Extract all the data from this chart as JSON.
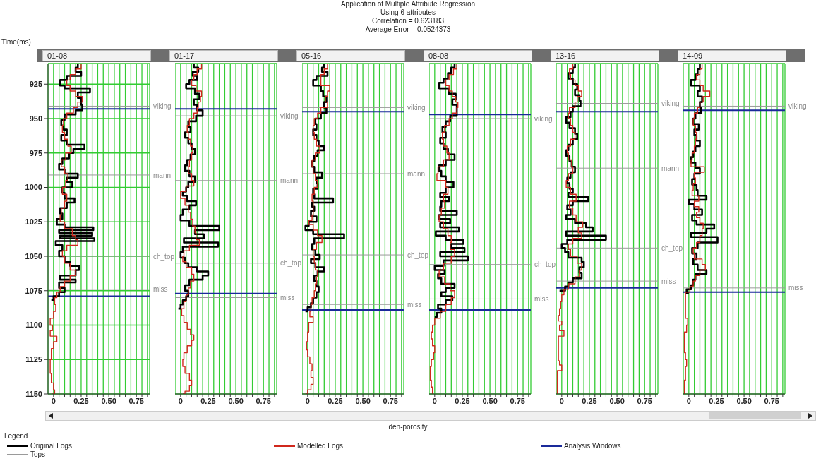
{
  "chart_data": [
    {
      "type": "step",
      "title": "01-08",
      "ylabel": "Time(ms)",
      "grid": true,
      "xlim": [
        -0.05,
        0.87
      ],
      "ylim": [
        1150,
        910
      ],
      "xticks": [
        0,
        {
          "value": 0.05,
          "label": null
        },
        {
          "value": 0.1,
          "label": null
        },
        {
          "value": 0.15,
          "label": null
        },
        {
          "value": 0.2,
          "label": null
        },
        0.25,
        {
          "value": 0.3,
          "label": null
        },
        {
          "value": 0.35,
          "label": null
        },
        {
          "value": 0.4,
          "label": null
        },
        {
          "value": 0.45,
          "label": null
        },
        {
          "value": 0.5,
          "label": "0.50"
        },
        {
          "value": 0.55,
          "label": null
        },
        {
          "value": 0.6,
          "label": null
        },
        {
          "value": 0.65,
          "label": null
        },
        {
          "value": 0.7,
          "label": null
        },
        0.75,
        {
          "value": 0.8,
          "label": null
        },
        {
          "value": 0.85,
          "label": null
        }
      ],
      "yticks": [
        925,
        950,
        975,
        1000,
        1025,
        1050,
        1075,
        1100,
        1125,
        1150
      ],
      "series": [
        {
          "color": "#000000",
          "x": [
            0.22,
            0.2,
            0.25,
            0.12,
            0.06,
            0.1,
            0.33,
            0.22,
            0.25,
            0.26,
            0.2,
            0.1,
            0.07,
            0.09,
            0.12,
            0.07,
            0.12,
            0.28,
            0.18,
            0.14,
            0.08,
            0.05,
            0.1,
            0.22,
            0.12,
            0.17,
            0.08,
            0.1,
            0.19,
            0.12,
            0.06,
            0.08,
            0.03,
            0.1,
            0.36,
            0.05,
            0.35,
            0.06,
            0.37,
            0.02,
            0.08,
            0.05,
            0.1,
            0.15,
            0.23,
            0.2,
            0.06,
            0.2,
            0.05,
            0.1,
            0.05,
            0.0,
            -0.02
          ],
          "values": [
            910,
            913,
            916,
            919,
            922,
            926,
            928,
            931,
            935,
            940,
            944,
            947,
            951,
            955,
            958,
            962,
            966,
            969,
            972,
            975,
            979,
            983,
            987,
            990,
            993,
            996,
            1000,
            1004,
            1008,
            1011,
            1015,
            1019,
            1023,
            1027,
            1029,
            1031,
            1033,
            1035,
            1037,
            1039,
            1042,
            1046,
            1050,
            1054,
            1057,
            1060,
            1064,
            1067,
            1069,
            1073,
            1076,
            1079,
            1082
          ]
        },
        {
          "color": "#d0281c",
          "x": [
            0.25,
            0.2,
            0.15,
            0.12,
            0.15,
            0.2,
            0.26,
            0.22,
            0.18,
            0.12,
            0.09,
            0.08,
            0.1,
            0.13,
            0.16,
            0.11,
            0.07,
            0.1,
            0.13,
            0.11,
            0.08,
            0.12,
            0.1,
            0.07,
            0.06,
            0.1,
            0.17,
            0.2,
            0.22,
            0.12,
            0.08,
            0.1,
            0.15,
            0.2,
            0.15,
            0.1,
            0.06,
            0.03,
            0.01,
            0.02,
            0.0,
            -0.03,
            -0.01,
            -0.03,
            0.03,
            0.0,
            -0.02,
            -0.03,
            -0.02,
            0.0,
            0.01,
            -0.01
          ],
          "values": [
            910,
            914,
            918,
            922,
            926,
            930,
            934,
            938,
            942,
            946,
            950,
            955,
            960,
            965,
            970,
            975,
            980,
            985,
            990,
            995,
            1000,
            1005,
            1010,
            1015,
            1020,
            1025,
            1030,
            1035,
            1038,
            1042,
            1046,
            1050,
            1055,
            1060,
            1064,
            1068,
            1072,
            1076,
            1080,
            1085,
            1090,
            1095,
            1100,
            1104,
            1108,
            1112,
            1117,
            1125,
            1135,
            1142,
            1147,
            1150
          ]
        }
      ],
      "ref_lines": [
        {
          "axis": "y",
          "value": 941,
          "label": "viking",
          "color": "#9a9a9a"
        },
        {
          "axis": "y",
          "value": 943,
          "color": "#1a2a9a"
        },
        {
          "axis": "y",
          "value": 991,
          "label": "mann",
          "color": "#9a9a9a"
        },
        {
          "axis": "y",
          "value": 1050,
          "label": "ch_top",
          "color": "#9a9a9a"
        },
        {
          "axis": "y",
          "value": 1074,
          "label": "miss",
          "color": "#9a9a9a"
        },
        {
          "axis": "y",
          "value": 1079,
          "color": "#1a2a9a"
        }
      ]
    },
    {
      "type": "step",
      "title": "01-17",
      "tick_labels": "x",
      "grid": true,
      "xlim": [
        -0.05,
        0.87
      ],
      "ylim": [
        1150,
        910
      ],
      "xticks": [
        0,
        {
          "value": 0.05,
          "label": null
        },
        {
          "value": 0.1,
          "label": null
        },
        {
          "value": 0.15,
          "label": null
        },
        {
          "value": 0.2,
          "label": null
        },
        0.25,
        {
          "value": 0.3,
          "label": null
        },
        {
          "value": 0.35,
          "label": null
        },
        {
          "value": 0.4,
          "label": null
        },
        {
          "value": 0.45,
          "label": null
        },
        {
          "value": 0.5,
          "label": "0.50"
        },
        {
          "value": 0.55,
          "label": null
        },
        {
          "value": 0.6,
          "label": null
        },
        {
          "value": 0.65,
          "label": null
        },
        {
          "value": 0.7,
          "label": null
        },
        0.75,
        {
          "value": 0.8,
          "label": null
        },
        {
          "value": 0.85,
          "label": null
        }
      ],
      "yticks": [
        925,
        950,
        975,
        1000,
        1025,
        1050,
        1075,
        1100,
        1125,
        1150
      ],
      "series": [
        {
          "color": "#000000",
          "x": [
            0.12,
            0.16,
            0.11,
            0.15,
            0.08,
            0.05,
            0.13,
            0.17,
            0.12,
            0.15,
            0.2,
            0.14,
            0.07,
            0.09,
            0.04,
            0.07,
            0.1,
            0.13,
            0.09,
            0.06,
            0.04,
            0.08,
            0.13,
            0.07,
            0.05,
            0.02,
            0.06,
            0.14,
            0.08,
            0.02,
            0.0,
            0.08,
            0.35,
            0.13,
            0.21,
            0.03,
            0.34,
            0.02,
            0.0,
            0.04,
            0.07,
            0.15,
            0.25,
            0.2,
            0.08,
            0.04,
            0.07,
            0.05,
            0.02,
            0.0,
            -0.02
          ],
          "values": [
            910,
            913,
            916,
            919,
            922,
            925,
            928,
            932,
            936,
            940,
            944,
            948,
            952,
            956,
            960,
            964,
            968,
            972,
            976,
            980,
            984,
            988,
            992,
            996,
            1000,
            1003,
            1006,
            1010,
            1013,
            1016,
            1020,
            1024,
            1028,
            1031,
            1034,
            1037,
            1040,
            1043,
            1047,
            1051,
            1055,
            1058,
            1061,
            1064,
            1067,
            1071,
            1075,
            1079,
            1082,
            1085,
            1088
          ]
        },
        {
          "color": "#d0281c",
          "x": [
            0.19,
            0.15,
            0.12,
            0.1,
            0.14,
            0.19,
            0.18,
            0.16,
            0.15,
            0.12,
            0.08,
            0.06,
            0.07,
            0.09,
            0.11,
            0.1,
            0.08,
            0.07,
            0.1,
            0.12,
            0.05,
            0.0,
            0.04,
            0.07,
            0.09,
            0.11,
            0.13,
            0.14,
            0.17,
            0.08,
            0.03,
            0.02,
            0.05,
            0.1,
            0.12,
            0.09,
            0.07,
            0.05,
            0.03,
            0.01,
            0.03,
            0.06,
            0.09,
            0.12,
            0.1,
            0.06,
            0.03,
            0.02,
            0.04,
            0.08,
            0.1,
            0.08,
            0.04,
            0.02
          ],
          "values": [
            910,
            914,
            918,
            922,
            926,
            930,
            934,
            938,
            942,
            946,
            950,
            955,
            960,
            965,
            970,
            975,
            980,
            985,
            990,
            995,
            999,
            1003,
            1008,
            1013,
            1018,
            1023,
            1028,
            1033,
            1038,
            1042,
            1046,
            1050,
            1054,
            1058,
            1063,
            1068,
            1073,
            1078,
            1083,
            1088,
            1093,
            1098,
            1103,
            1107,
            1111,
            1115,
            1120,
            1125,
            1130,
            1135,
            1140,
            1144,
            1148,
            1150
          ]
        }
      ],
      "ref_lines": [
        {
          "axis": "y",
          "value": 943,
          "color": "#1a2a9a"
        },
        {
          "axis": "y",
          "value": 948,
          "label": "viking",
          "color": "#9a9a9a"
        },
        {
          "axis": "y",
          "value": 995,
          "label": "mann",
          "color": "#9a9a9a"
        },
        {
          "axis": "y",
          "value": 1055,
          "label": "ch_top",
          "color": "#9a9a9a"
        },
        {
          "axis": "y",
          "value": 1077,
          "color": "#1a2a9a"
        },
        {
          "axis": "y",
          "value": 1080,
          "label": "miss",
          "color": "#9a9a9a"
        }
      ]
    },
    {
      "type": "step",
      "title": "05-16",
      "tick_labels": "x",
      "grid": true,
      "xlim": [
        -0.05,
        0.87
      ],
      "ylim": [
        1150,
        910
      ],
      "xticks": [
        0,
        {
          "value": 0.05,
          "label": null
        },
        {
          "value": 0.1,
          "label": null
        },
        {
          "value": 0.15,
          "label": null
        },
        {
          "value": 0.2,
          "label": null
        },
        0.25,
        {
          "value": 0.3,
          "label": null
        },
        {
          "value": 0.35,
          "label": null
        },
        {
          "value": 0.4,
          "label": null
        },
        {
          "value": 0.45,
          "label": null
        },
        {
          "value": 0.5,
          "label": "0.50"
        },
        {
          "value": 0.55,
          "label": null
        },
        {
          "value": 0.6,
          "label": null
        },
        {
          "value": 0.65,
          "label": null
        },
        {
          "value": 0.7,
          "label": null
        },
        0.75,
        {
          "value": 0.8,
          "label": null
        },
        {
          "value": 0.85,
          "label": null
        }
      ],
      "yticks": [
        925,
        950,
        975,
        1000,
        1025,
        1050,
        1075,
        1100,
        1125,
        1150
      ],
      "series": [
        {
          "color": "#000000",
          "x": [
            0.15,
            0.13,
            0.18,
            0.08,
            0.05,
            0.12,
            0.14,
            0.17,
            0.15,
            0.17,
            0.12,
            0.07,
            0.08,
            0.05,
            0.08,
            0.1,
            0.15,
            0.09,
            0.06,
            0.04,
            0.06,
            0.13,
            0.08,
            0.09,
            0.05,
            0.06,
            0.23,
            0.04,
            0.06,
            0.03,
            0.08,
            0.01,
            -0.02,
            0.05,
            0.33,
            0.06,
            0.04,
            0.07,
            0.11,
            0.03,
            0.07,
            0.15,
            0.09,
            0.06,
            0.08,
            0.1,
            0.08,
            0.05,
            0.03,
            0.0,
            -0.02
          ],
          "values": [
            910,
            913,
            916,
            919,
            922,
            926,
            930,
            934,
            938,
            942,
            946,
            950,
            954,
            958,
            962,
            966,
            970,
            973,
            977,
            981,
            985,
            989,
            993,
            997,
            1001,
            1005,
            1008,
            1011,
            1014,
            1017,
            1021,
            1025,
            1028,
            1031,
            1034,
            1037,
            1041,
            1045,
            1049,
            1052,
            1055,
            1058,
            1061,
            1064,
            1068,
            1072,
            1076,
            1080,
            1084,
            1087,
            1090
          ]
        },
        {
          "color": "#d0281c",
          "x": [
            0.18,
            0.15,
            0.12,
            0.12,
            0.2,
            0.18,
            0.16,
            0.18,
            0.12,
            0.09,
            0.06,
            0.05,
            0.06,
            0.08,
            0.11,
            0.07,
            0.04,
            0.05,
            0.07,
            0.09,
            0.06,
            0.04,
            0.05,
            0.05,
            0.04,
            0.01,
            0.05,
            0.09,
            0.13,
            0.08,
            0.05,
            0.06,
            0.07,
            0.09,
            0.08,
            0.07,
            0.06,
            0.04,
            0.03,
            0.02,
            0.05,
            0.01,
            0.0,
            -0.01,
            0.0,
            0.02,
            0.04,
            0.03,
            0.05,
            0.03,
            0.0,
            -0.02
          ],
          "values": [
            910,
            914,
            918,
            922,
            926,
            930,
            934,
            938,
            942,
            946,
            950,
            955,
            960,
            965,
            970,
            975,
            980,
            985,
            990,
            995,
            1000,
            1005,
            1010,
            1015,
            1020,
            1024,
            1027,
            1031,
            1035,
            1040,
            1045,
            1050,
            1055,
            1060,
            1065,
            1070,
            1075,
            1080,
            1085,
            1090,
            1094,
            1098,
            1105,
            1112,
            1118,
            1123,
            1128,
            1133,
            1138,
            1143,
            1147,
            1150
          ]
        }
      ],
      "ref_lines": [
        {
          "axis": "y",
          "value": 942,
          "label": "viking",
          "color": "#9a9a9a"
        },
        {
          "axis": "y",
          "value": 945,
          "color": "#1a2a9a"
        },
        {
          "axis": "y",
          "value": 990,
          "label": "mann",
          "color": "#9a9a9a"
        },
        {
          "axis": "y",
          "value": 1049,
          "label": "ch_top",
          "color": "#9a9a9a"
        },
        {
          "axis": "y",
          "value": 1085,
          "label": "miss",
          "color": "#9a9a9a"
        },
        {
          "axis": "y",
          "value": 1089,
          "color": "#1a2a9a"
        }
      ]
    },
    {
      "type": "step",
      "title": "08-08",
      "tick_labels": "x",
      "grid": true,
      "xlim": [
        -0.05,
        0.87
      ],
      "ylim": [
        1150,
        910
      ],
      "xticks": [
        0,
        {
          "value": 0.05,
          "label": null
        },
        {
          "value": 0.1,
          "label": null
        },
        {
          "value": 0.15,
          "label": null
        },
        {
          "value": 0.2,
          "label": null
        },
        0.25,
        {
          "value": 0.3,
          "label": null
        },
        {
          "value": 0.35,
          "label": null
        },
        {
          "value": 0.4,
          "label": null
        },
        {
          "value": 0.45,
          "label": null
        },
        {
          "value": 0.5,
          "label": "0.50"
        },
        {
          "value": 0.55,
          "label": null
        },
        {
          "value": 0.6,
          "label": null
        },
        {
          "value": 0.65,
          "label": null
        },
        {
          "value": 0.7,
          "label": null
        },
        0.75,
        {
          "value": 0.8,
          "label": null
        },
        {
          "value": 0.85,
          "label": null
        }
      ],
      "yticks": [
        925,
        950,
        975,
        1000,
        1025,
        1050,
        1075,
        1100,
        1125,
        1150
      ],
      "series": [
        {
          "color": "#000000",
          "x": [
            0.18,
            0.15,
            0.12,
            0.08,
            0.04,
            0.13,
            0.19,
            0.16,
            0.2,
            0.2,
            0.14,
            0.1,
            0.07,
            0.1,
            0.05,
            0.08,
            0.12,
            0.18,
            0.1,
            0.04,
            0.06,
            0.1,
            0.17,
            0.1,
            0.05,
            0.13,
            0.06,
            0.05,
            0.2,
            0.04,
            0.14,
            0.05,
            0.22,
            0.01,
            0.1,
            0.26,
            0.15,
            0.27,
            0.05,
            0.3,
            0.08,
            0.0,
            0.09,
            0.03,
            0.06,
            0.18,
            0.1,
            0.06,
            0.16,
            0.1,
            0.03,
            0.06,
            0.02,
            0.0
          ],
          "values": [
            910,
            913,
            917,
            921,
            924,
            928,
            932,
            936,
            940,
            944,
            948,
            952,
            956,
            960,
            964,
            968,
            972,
            976,
            980,
            984,
            988,
            992,
            996,
            1000,
            1004,
            1007,
            1010,
            1014,
            1017,
            1020,
            1023,
            1026,
            1029,
            1032,
            1035,
            1038,
            1041,
            1044,
            1047,
            1050,
            1053,
            1057,
            1060,
            1063,
            1066,
            1070,
            1073,
            1076,
            1079,
            1082,
            1085,
            1088,
            1091,
            1094
          ]
        },
        {
          "color": "#d0281c",
          "x": [
            0.2,
            0.17,
            0.13,
            0.1,
            0.13,
            0.16,
            0.19,
            0.21,
            0.2,
            0.16,
            0.13,
            0.09,
            0.07,
            0.08,
            0.11,
            0.13,
            0.08,
            0.03,
            0.02,
            0.1,
            0.12,
            0.08,
            0.09,
            0.06,
            0.04,
            0.08,
            0.12,
            0.15,
            0.14,
            0.18,
            0.15,
            0.08,
            0.04,
            0.09,
            0.14,
            0.18,
            0.15,
            0.1,
            0.05,
            0.0,
            -0.02,
            -0.03,
            -0.02,
            0.0,
            -0.01,
            -0.03,
            -0.04,
            -0.04,
            -0.03,
            -0.02,
            -0.02
          ],
          "values": [
            910,
            914,
            918,
            922,
            926,
            930,
            934,
            938,
            942,
            946,
            950,
            955,
            960,
            965,
            970,
            975,
            980,
            985,
            990,
            995,
            1000,
            1005,
            1010,
            1015,
            1020,
            1025,
            1030,
            1035,
            1040,
            1045,
            1050,
            1055,
            1060,
            1065,
            1070,
            1075,
            1080,
            1085,
            1090,
            1095,
            1100,
            1105,
            1110,
            1115,
            1120,
            1125,
            1130,
            1135,
            1140,
            1145,
            1150
          ]
        }
      ],
      "ref_lines": [
        {
          "axis": "y",
          "value": 947,
          "color": "#1a2a9a"
        },
        {
          "axis": "y",
          "value": 950,
          "label": "viking",
          "color": "#9a9a9a"
        },
        {
          "axis": "y",
          "value": 1056,
          "label": "ch_top",
          "color": "#9a9a9a"
        },
        {
          "axis": "y",
          "value": 1081,
          "label": "miss",
          "color": "#9a9a9a"
        },
        {
          "axis": "y",
          "value": 1089,
          "color": "#1a2a9a"
        }
      ]
    },
    {
      "type": "step",
      "title": "13-16",
      "tick_labels": "x",
      "grid": true,
      "xlim": [
        -0.05,
        0.87
      ],
      "ylim": [
        1150,
        910
      ],
      "xticks": [
        0,
        {
          "value": 0.05,
          "label": null
        },
        {
          "value": 0.1,
          "label": null
        },
        {
          "value": 0.15,
          "label": null
        },
        {
          "value": 0.2,
          "label": null
        },
        0.25,
        {
          "value": 0.3,
          "label": null
        },
        {
          "value": 0.35,
          "label": null
        },
        {
          "value": 0.4,
          "label": null
        },
        {
          "value": 0.45,
          "label": null
        },
        {
          "value": 0.5,
          "label": "0.50"
        },
        {
          "value": 0.55,
          "label": null
        },
        {
          "value": 0.6,
          "label": null
        },
        {
          "value": 0.65,
          "label": null
        },
        {
          "value": 0.7,
          "label": null
        },
        0.75,
        {
          "value": 0.8,
          "label": null
        },
        {
          "value": 0.85,
          "label": null
        }
      ],
      "yticks": [
        925,
        950,
        975,
        1000,
        1025,
        1050,
        1075,
        1100,
        1125,
        1150
      ],
      "series": [
        {
          "color": "#000000",
          "x": [
            0.12,
            0.1,
            0.06,
            0.1,
            0.14,
            0.12,
            0.16,
            0.17,
            0.1,
            0.08,
            0.04,
            0.07,
            0.12,
            0.14,
            0.1,
            0.06,
            0.04,
            0.07,
            0.09,
            0.12,
            0.08,
            0.05,
            0.07,
            0.1,
            0.06,
            0.24,
            0.1,
            0.05,
            0.08,
            0.04,
            0.12,
            0.22,
            0.28,
            0.04,
            0.4,
            0.05,
            0.0,
            0.03,
            0.06,
            0.18,
            0.2,
            0.16,
            0.18,
            0.1,
            0.06,
            0.03,
            -0.02
          ],
          "values": [
            910,
            913,
            917,
            921,
            925,
            929,
            933,
            937,
            941,
            945,
            949,
            953,
            957,
            961,
            965,
            969,
            973,
            977,
            981,
            985,
            989,
            993,
            997,
            1001,
            1004,
            1007,
            1010,
            1013,
            1016,
            1020,
            1023,
            1026,
            1029,
            1032,
            1035,
            1038,
            1041,
            1044,
            1047,
            1051,
            1054,
            1058,
            1062,
            1066,
            1069,
            1072,
            1075
          ]
        },
        {
          "color": "#d0281c",
          "x": [
            0.1,
            0.07,
            0.08,
            0.12,
            0.15,
            0.18,
            0.14,
            0.12,
            0.07,
            0.06,
            0.08,
            0.1,
            0.12,
            0.08,
            0.05,
            0.06,
            0.09,
            0.1,
            0.06,
            0.04,
            0.08,
            0.13,
            0.07,
            0.1,
            0.13,
            0.19,
            0.15,
            0.18,
            0.1,
            0.06,
            0.08,
            0.14,
            0.18,
            0.16,
            0.12,
            0.06,
            0.02,
            0.0,
            -0.01,
            -0.02,
            -0.03,
            0.0,
            -0.02,
            0.02,
            -0.03,
            -0.03,
            -0.03,
            -0.02,
            0.0,
            -0.04,
            -0.04,
            -0.04
          ],
          "values": [
            910,
            914,
            918,
            922,
            926,
            930,
            934,
            938,
            942,
            946,
            950,
            955,
            960,
            965,
            970,
            975,
            980,
            985,
            990,
            995,
            1000,
            1005,
            1010,
            1015,
            1020,
            1025,
            1029,
            1033,
            1037,
            1041,
            1045,
            1050,
            1055,
            1060,
            1065,
            1070,
            1074,
            1078,
            1083,
            1088,
            1093,
            1097,
            1100,
            1104,
            1108,
            1115,
            1121,
            1126,
            1129,
            1133,
            1141,
            1150
          ]
        }
      ],
      "ref_lines": [
        {
          "axis": "y",
          "value": 939,
          "label": "viking",
          "color": "#9a9a9a"
        },
        {
          "axis": "y",
          "value": 945,
          "color": "#1a2a9a"
        },
        {
          "axis": "y",
          "value": 986,
          "label": "mann",
          "color": "#9a9a9a"
        },
        {
          "axis": "y",
          "value": 1044,
          "label": "ch_top",
          "color": "#9a9a9a"
        },
        {
          "axis": "y",
          "value": 1068,
          "label": "miss",
          "color": "#9a9a9a"
        },
        {
          "axis": "y",
          "value": 1073,
          "color": "#1a2a9a"
        }
      ]
    },
    {
      "type": "step",
      "title": "14-09",
      "tick_labels": "x",
      "grid": true,
      "xlim": [
        -0.05,
        0.87
      ],
      "ylim": [
        1150,
        910
      ],
      "xticks": [
        0,
        {
          "value": 0.05,
          "label": null
        },
        {
          "value": 0.1,
          "label": null
        },
        {
          "value": 0.15,
          "label": null
        },
        {
          "value": 0.2,
          "label": null
        },
        0.25,
        {
          "value": 0.3,
          "label": null
        },
        {
          "value": 0.35,
          "label": null
        },
        {
          "value": 0.4,
          "label": null
        },
        {
          "value": 0.45,
          "label": null
        },
        {
          "value": 0.5,
          "label": "0.50"
        },
        {
          "value": 0.55,
          "label": null
        },
        {
          "value": 0.6,
          "label": null
        },
        {
          "value": 0.65,
          "label": null
        },
        {
          "value": 0.7,
          "label": null
        },
        0.75,
        {
          "value": 0.8,
          "label": null
        },
        {
          "value": 0.85,
          "label": null
        }
      ],
      "yticks": [
        925,
        950,
        975,
        1000,
        1025,
        1050,
        1075,
        1100,
        1125,
        1150
      ],
      "series": [
        {
          "color": "#000000",
          "x": [
            0.1,
            0.08,
            0.06,
            0.02,
            0.1,
            0.08,
            0.12,
            0.1,
            0.11,
            0.06,
            0.04,
            0.09,
            0.05,
            0.07,
            0.1,
            0.06,
            0.04,
            0.02,
            0.06,
            0.1,
            0.05,
            0.03,
            0.07,
            0.08,
            0.16,
            0.0,
            0.05,
            0.12,
            0.03,
            0.07,
            0.23,
            0.16,
            0.02,
            0.26,
            0.08,
            0.03,
            0.07,
            0.04,
            0.08,
            0.16,
            0.06,
            0.04,
            0.02,
            -0.02,
            0.0
          ],
          "values": [
            910,
            914,
            918,
            922,
            926,
            930,
            934,
            938,
            942,
            946,
            950,
            954,
            958,
            962,
            966,
            970,
            974,
            978,
            982,
            986,
            990,
            994,
            998,
            1002,
            1006,
            1009,
            1012,
            1016,
            1020,
            1024,
            1027,
            1030,
            1033,
            1036,
            1040,
            1044,
            1048,
            1052,
            1056,
            1060,
            1063,
            1067,
            1071,
            1074,
            1077
          ]
        },
        {
          "color": "#d0281c",
          "x": [
            0.12,
            0.1,
            0.07,
            0.1,
            0.13,
            0.19,
            0.13,
            0.1,
            0.08,
            0.05,
            0.04,
            0.06,
            0.07,
            0.06,
            0.05,
            0.03,
            0.02,
            0.14,
            0.05,
            0.06,
            0.04,
            0.03,
            0.09,
            0.05,
            0.09,
            0.07,
            0.1,
            0.13,
            0.12,
            0.1,
            0.07,
            0.04,
            0.05,
            0.12,
            0.15,
            0.1,
            0.06,
            0.04,
            0.01,
            -0.03,
            -0.03,
            -0.03,
            -0.01,
            -0.02,
            -0.04,
            -0.04,
            -0.03,
            -0.02,
            -0.03,
            -0.04,
            -0.04
          ],
          "values": [
            910,
            914,
            918,
            922,
            926,
            930,
            934,
            938,
            942,
            946,
            950,
            955,
            960,
            965,
            970,
            975,
            980,
            985,
            989,
            993,
            997,
            1002,
            1006,
            1010,
            1014,
            1018,
            1022,
            1026,
            1030,
            1035,
            1040,
            1044,
            1048,
            1052,
            1056,
            1060,
            1064,
            1068,
            1072,
            1076,
            1080,
            1090,
            1095,
            1100,
            1105,
            1115,
            1120,
            1125,
            1130,
            1140,
            1150
          ]
        }
      ],
      "ref_lines": [
        {
          "axis": "y",
          "value": 941,
          "label": "viking",
          "color": "#9a9a9a"
        },
        {
          "axis": "y",
          "value": 944,
          "color": "#1a2a9a"
        },
        {
          "axis": "y",
          "value": 1073,
          "label": "miss",
          "color": "#9a9a9a"
        },
        {
          "axis": "y",
          "value": 1076,
          "color": "#1a2a9a"
        }
      ]
    },
    {
      "type": "other",
      "xlabel": "den-porosity",
      "title": "Application of Multiple Attribute Regression",
      "subtitle": "Using 6 attributes",
      "annotations": [
        "Correlation = 0.623183",
        "Average Error = 0.0524373"
      ],
      "legend_title": "Legend",
      "legend": "bottom",
      "series": [
        {
          "name": "Original Logs",
          "color": "#000000"
        },
        {
          "name": "Modelled Logs",
          "color": "#d0281c"
        },
        {
          "name": "Analysis Windows",
          "color": "#1a2a9a"
        },
        {
          "name": "Tops",
          "color": "#9a9a9a"
        }
      ]
    }
  ]
}
